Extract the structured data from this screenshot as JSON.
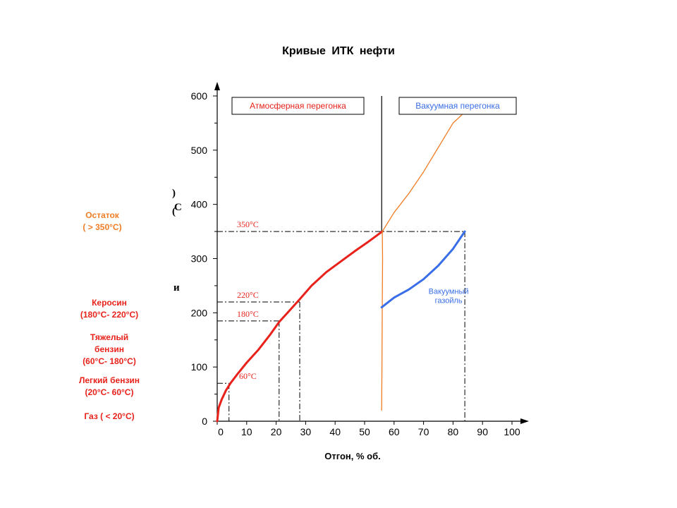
{
  "chart_data": {
    "type": "line",
    "title": "Кривые  ИТК  нефти",
    "xlabel": "Отгон, % об.",
    "xlim": [
      0,
      100
    ],
    "ylim": [
      0,
      600
    ],
    "x_ticks": [
      "0",
      "10",
      "20",
      "30",
      "40",
      "50",
      "60",
      "70",
      "80",
      "90",
      "100"
    ],
    "y_ticks": [
      "0",
      "100",
      "200",
      "300",
      "400",
      "500",
      "600"
    ],
    "series": [
      {
        "name": "",
        "color": "#e8211a",
        "x": [
          0,
          0.5,
          1.5,
          3,
          4.5,
          7,
          10,
          14,
          18,
          21,
          25,
          28,
          32,
          37,
          42,
          47,
          51,
          56
        ],
        "y": [
          0,
          25,
          40,
          57,
          70,
          88,
          108,
          132,
          160,
          183,
          207,
          225,
          250,
          275,
          295,
          315,
          330,
          350
        ]
      },
      {
        "name": "",
        "color": "#ef7d26",
        "x": [
          56,
          60,
          65,
          70,
          75,
          80,
          83
        ],
        "y": [
          350,
          385,
          420,
          460,
          505,
          550,
          565
        ]
      },
      {
        "name": "",
        "color": "#ef7d26",
        "x": [
          55.8,
          55.9,
          56,
          56.1,
          56
        ],
        "y": [
          20,
          120,
          220,
          300,
          350
        ]
      },
      {
        "name": "Вакуумный газойль",
        "color": "#3a6ee8",
        "x": [
          55.8,
          60,
          65,
          70,
          75,
          80,
          84
        ],
        "y": [
          210,
          228,
          243,
          262,
          287,
          318,
          350
        ]
      }
    ],
    "reference_lines": [
      {
        "label": "60°C",
        "y": 70,
        "x_end": 4
      },
      {
        "label": "180°C",
        "y": 185,
        "x_end": 21
      },
      {
        "label": "220°C",
        "y": 220,
        "x_end": 28
      },
      {
        "label": "350°C",
        "y": 350,
        "x_end": 84
      }
    ],
    "separator_x": 55.8,
    "boxes": [
      {
        "label": "Атмосферная перегонка",
        "color": "#e8211a"
      },
      {
        "label": "Вакуумная  перегонка",
        "color": "#3a6ee8"
      }
    ],
    "fractions": [
      {
        "line1": "Остаток",
        "line2": "( > 350°C)",
        "color": "#ef7d26"
      },
      {
        "line1": "Керосин",
        "line2": "(180°C- 220°C)",
        "color": "#e8211a"
      },
      {
        "line1": "Тяжелый",
        "line2": "бензин",
        "line3": "(60°C- 180°C)",
        "color": "#e8211a"
      },
      {
        "line1": "Легкий бензин",
        "line2": "(20°C- 60°C)",
        "color": "#e8211a"
      },
      {
        "line1": "Газ ( < 20°C)",
        "color": "#e8211a"
      }
    ],
    "ylabel_fragments": [
      ")",
      "С",
      "(",
      "и"
    ]
  }
}
